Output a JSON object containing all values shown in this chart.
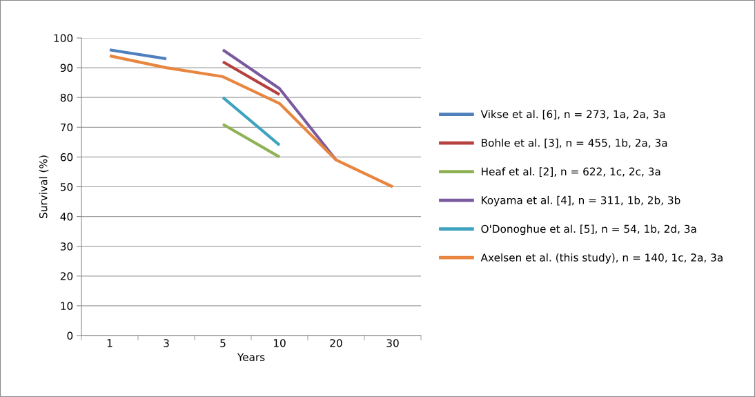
{
  "chart_data": {
    "type": "line",
    "xlabel": "Years",
    "ylabel": "Survival (%)",
    "categories": [
      "1",
      "3",
      "5",
      "10",
      "20",
      "30"
    ],
    "series": [
      {
        "name": "Vikse et al. [6], n = 273, 1a, 2a, 3a",
        "color": "#4f7fbc",
        "values": [
          96,
          93,
          null,
          null,
          null,
          null
        ]
      },
      {
        "name": "Bohle et al. [3], n = 455, 1b, 2a, 3a",
        "color": "#b6413f",
        "values": [
          null,
          null,
          92,
          81,
          null,
          null
        ]
      },
      {
        "name": "Heaf et al. [2], n = 622, 1c, 2c, 3a",
        "color": "#8fb256",
        "values": [
          null,
          null,
          71,
          60,
          null,
          null
        ]
      },
      {
        "name": "Koyama et al. [4], n = 311, 1b, 2b, 3b",
        "color": "#7a5a9e",
        "values": [
          null,
          null,
          96,
          83,
          59,
          null
        ]
      },
      {
        "name": "O'Donoghue et al. [5], n = 54, 1b, 2d, 3a",
        "color": "#3ea3bf",
        "values": [
          null,
          null,
          80,
          64,
          null,
          null
        ]
      },
      {
        "name": "Axelsen et al. (this study), n = 140, 1c, 2a, 3a",
        "color": "#e8853f",
        "values": [
          94,
          90,
          87,
          78,
          59,
          50
        ]
      }
    ],
    "ylim": [
      0,
      100
    ],
    "yticks": [
      0,
      10,
      20,
      30,
      40,
      50,
      60,
      70,
      80,
      90,
      100
    ],
    "grid": "y",
    "legend": "right",
    "marker": "none",
    "line_style": "solid"
  }
}
